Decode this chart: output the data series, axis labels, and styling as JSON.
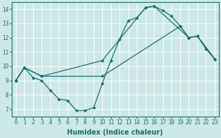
{
  "bg_color": "#cce8e8",
  "grid_color": "#ffffff",
  "line_color": "#1a6b6b",
  "line1_x": [
    0,
    1,
    2,
    3,
    4,
    5,
    6,
    7,
    8,
    9,
    10,
    11,
    12,
    13,
    14,
    15,
    16,
    17,
    18,
    19,
    20,
    21,
    22,
    23
  ],
  "line1_y": [
    9.0,
    9.9,
    9.2,
    9.0,
    8.3,
    7.7,
    7.6,
    6.9,
    6.9,
    7.1,
    8.8,
    10.4,
    11.9,
    13.2,
    13.4,
    14.1,
    14.2,
    13.9,
    13.5,
    12.8,
    12.0,
    12.1,
    11.2,
    10.5
  ],
  "line2_x": [
    0,
    1,
    3,
    10,
    19,
    20,
    21,
    23
  ],
  "line2_y": [
    9.0,
    9.9,
    9.3,
    9.3,
    12.8,
    12.0,
    12.1,
    10.5
  ],
  "line3_x": [
    0,
    1,
    3,
    10,
    15,
    16,
    20,
    21,
    23
  ],
  "line3_y": [
    9.0,
    9.9,
    9.3,
    10.4,
    14.1,
    14.2,
    12.0,
    12.1,
    10.5
  ],
  "xlabel": "Humidex (Indice chaleur)",
  "xlim": [
    -0.5,
    23.5
  ],
  "ylim": [
    6.5,
    14.5
  ],
  "yticks": [
    7,
    8,
    9,
    10,
    11,
    12,
    13,
    14
  ],
  "xticks": [
    0,
    1,
    2,
    3,
    4,
    5,
    6,
    7,
    8,
    9,
    10,
    11,
    12,
    13,
    14,
    15,
    16,
    17,
    18,
    19,
    20,
    21,
    22,
    23
  ],
  "marker": "D",
  "marker_size": 2.0,
  "line_width": 0.9,
  "xlabel_fontsize": 7,
  "tick_fontsize": 5.5
}
